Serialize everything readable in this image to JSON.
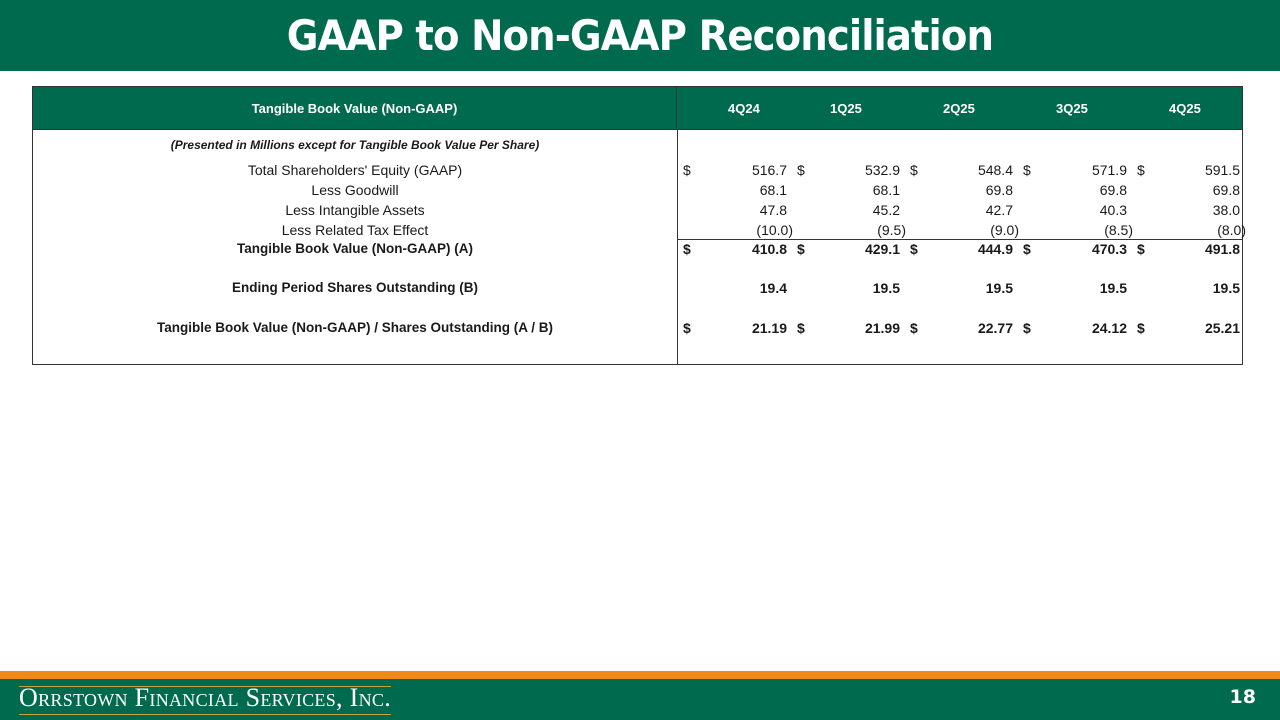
{
  "slide": {
    "title": "GAAP to Non-GAAP Reconciliation",
    "page_number": "18",
    "company_logo_text": "Orrstown Financial Services, Inc."
  },
  "colors": {
    "brand_green": "#006a4e",
    "accent_orange": "#f08a1c"
  },
  "table": {
    "header_label": "Tangible Book Value (Non-GAAP)",
    "periods": [
      "4Q24",
      "1Q25",
      "2Q25",
      "3Q25",
      "4Q25"
    ],
    "note": "(Presented in Millions except for Tangible Book Value Per Share)",
    "rows": [
      {
        "label": "Total Shareholders' Equity (GAAP)",
        "bold": false,
        "dollar": "$",
        "values": [
          "516.7",
          "532.9",
          "548.4",
          "571.9",
          "591.5"
        ]
      },
      {
        "label": "Less Goodwill",
        "bold": false,
        "dollar": "",
        "values": [
          "68.1",
          "68.1",
          "69.8",
          "69.8",
          "69.8"
        ]
      },
      {
        "label": "Less Intangible Assets",
        "bold": false,
        "dollar": "",
        "values": [
          "47.8",
          "45.2",
          "42.7",
          "40.3",
          "38.0"
        ]
      },
      {
        "label": "Less Related Tax Effect",
        "bold": false,
        "dollar": "",
        "values": [
          "(10.0)",
          "(9.5)",
          "(9.0)",
          "(8.5)",
          "(8.0)"
        ]
      },
      {
        "label": "Tangible Book Value (Non-GAAP) (A)",
        "bold": true,
        "dollar": "$",
        "values": [
          "410.8",
          "429.1",
          "444.9",
          "470.3",
          "491.8"
        ]
      },
      {
        "label": "Ending Period Shares Outstanding (B)",
        "bold": true,
        "dollar": "",
        "values": [
          "19.4",
          "19.5",
          "19.5",
          "19.5",
          "19.5"
        ]
      },
      {
        "label": "Tangible Book Value (Non-GAAP) / Shares Outstanding (A / B)",
        "bold": true,
        "dollar": "$",
        "values": [
          "21.19",
          "21.99",
          "22.77",
          "24.12",
          "25.21"
        ]
      }
    ],
    "dollar_sign": "$"
  }
}
